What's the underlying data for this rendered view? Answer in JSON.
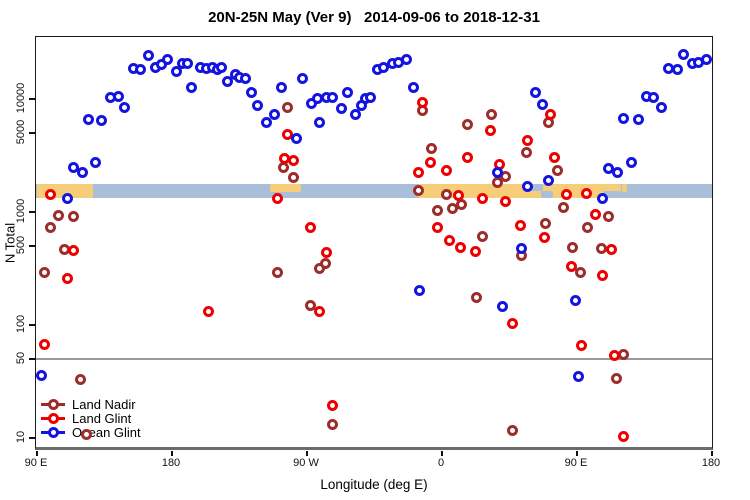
{
  "title": "20N-25N May (Ver 9)   2014-09-06 to 2018-12-31",
  "legend": {
    "items": [
      {
        "label": "Land Nadir",
        "color": "#9b2d2b"
      },
      {
        "label": "Land Glint",
        "color": "#ee0000"
      },
      {
        "label": "Ocean Glint",
        "color": "#1414e0"
      }
    ]
  },
  "chart_data": {
    "type": "scatter",
    "title": "20N-25N May (Ver 9)   2014-09-06 to 2018-12-31",
    "xlabel": "Longitude (deg E)",
    "ylabel": "N Total",
    "x_axis": {
      "note": "longitude axis wraps eastward from 90E; stored lon = degrees east of Greenwich, 90..540",
      "ticks": [
        90,
        180,
        270,
        360,
        450,
        540
      ],
      "tick_labels": [
        "90 E",
        "180",
        "90 W",
        "0",
        "90 E",
        "180"
      ],
      "range": [
        90,
        540
      ]
    },
    "y_axis": {
      "scale": "log",
      "ticks": [
        10,
        50,
        100,
        500,
        1000,
        5000,
        10000
      ],
      "tick_labels": [
        "10",
        "50",
        "100",
        "500",
        "1000",
        "5000",
        "10000"
      ],
      "range": [
        7.7,
        36000
      ]
    },
    "grid": false,
    "reference_line_n": 50,
    "map_band": {
      "n_range": [
        1300,
        1750
      ],
      "ocean_color": "#a9bed8",
      "land_color": "#f8cd7a",
      "land_segments": [
        {
          "lon_from": 90,
          "lon_to": 127,
          "frac_top": 0,
          "frac_h": 1
        },
        {
          "lon_from": 245,
          "lon_to": 266,
          "frac_top": 0,
          "frac_h": 0.6
        },
        {
          "lon_from": 344,
          "lon_to": 479,
          "frac_top": 0,
          "frac_h": 1
        },
        {
          "lon_from": 480,
          "lon_to": 483,
          "frac_top": 0,
          "frac_h": 0.55
        }
      ],
      "ocean_patches": [
        {
          "lon_from": 417,
          "lon_to": 427,
          "frac_top": 0,
          "frac_h": 0.5
        },
        {
          "lon_from": 426,
          "lon_to": 434,
          "frac_top": 0.5,
          "frac_h": 0.5
        },
        {
          "lon_from": 467,
          "lon_to": 479,
          "frac_top": 0.5,
          "frac_h": 0.5
        }
      ]
    },
    "series": [
      {
        "name": "Land Nadir",
        "color": "#9b2d2b",
        "points": [
          [
            104,
            920
          ],
          [
            114,
            900
          ],
          [
            99,
            720
          ],
          [
            108,
            460
          ],
          [
            95,
            283
          ],
          [
            119,
            32
          ],
          [
            123,
            10.6
          ],
          [
            257,
            8200
          ],
          [
            254,
            2450
          ],
          [
            261,
            1960
          ],
          [
            278,
            313
          ],
          [
            282,
            340
          ],
          [
            250,
            283
          ],
          [
            272,
            147
          ],
          [
            287,
            13
          ],
          [
            347,
            7800
          ],
          [
            353,
            3600
          ],
          [
            344,
            1530
          ],
          [
            363,
            1390
          ],
          [
            357,
            1020
          ],
          [
            367,
            1060
          ],
          [
            373,
            1150
          ],
          [
            377,
            5800
          ],
          [
            387,
            590
          ],
          [
            393,
            7100
          ],
          [
            383,
            170
          ],
          [
            397,
            1770
          ],
          [
            402,
            2000
          ],
          [
            407,
            11.5
          ],
          [
            413,
            400
          ],
          [
            416,
            3300
          ],
          [
            429,
            780
          ],
          [
            431,
            6100
          ],
          [
            437,
            2260
          ],
          [
            441,
            1080
          ],
          [
            447,
            480
          ],
          [
            452,
            283
          ],
          [
            457,
            720
          ],
          [
            466,
            470
          ],
          [
            471,
            890
          ],
          [
            476,
            33
          ],
          [
            481,
            54
          ]
        ]
      },
      {
        "name": "Land Glint",
        "color": "#ee0000",
        "points": [
          [
            99,
            1390
          ],
          [
            114,
            450
          ],
          [
            110,
            255
          ],
          [
            95,
            66
          ],
          [
            204,
            130
          ],
          [
            257,
            4800
          ],
          [
            255,
            2900
          ],
          [
            261,
            2770
          ],
          [
            250,
            1280
          ],
          [
            272,
            710
          ],
          [
            283,
            430
          ],
          [
            278,
            128
          ],
          [
            287,
            19
          ],
          [
            347,
            9200
          ],
          [
            352,
            2700
          ],
          [
            344,
            2170
          ],
          [
            363,
            2300
          ],
          [
            357,
            710
          ],
          [
            365,
            550
          ],
          [
            372,
            480
          ],
          [
            371,
            1360
          ],
          [
            377,
            3000
          ],
          [
            382,
            440
          ],
          [
            387,
            1280
          ],
          [
            392,
            5200
          ],
          [
            398,
            2600
          ],
          [
            402,
            1220
          ],
          [
            407,
            102
          ],
          [
            412,
            740
          ],
          [
            417,
            4200
          ],
          [
            428,
            580
          ],
          [
            432,
            7200
          ],
          [
            435,
            2950
          ],
          [
            443,
            1410
          ],
          [
            446,
            325
          ],
          [
            453,
            64
          ],
          [
            456,
            1440
          ],
          [
            462,
            940
          ],
          [
            467,
            266
          ],
          [
            473,
            460
          ],
          [
            475,
            53
          ],
          [
            481,
            10.2
          ]
        ]
      },
      {
        "name": "Ocean Glint",
        "color": "#1414e0",
        "points": [
          [
            93,
            35
          ],
          [
            110,
            1280
          ],
          [
            114,
            2450
          ],
          [
            120,
            2170
          ],
          [
            129,
            2660
          ],
          [
            124,
            6400
          ],
          [
            133,
            6300
          ],
          [
            139,
            10200
          ],
          [
            144,
            10400
          ],
          [
            148,
            8300
          ],
          [
            154,
            18400
          ],
          [
            159,
            17700
          ],
          [
            164,
            24000
          ],
          [
            169,
            18800
          ],
          [
            173,
            19600
          ],
          [
            177,
            21700
          ],
          [
            183,
            17000
          ],
          [
            187,
            20400
          ],
          [
            190,
            20000
          ],
          [
            193,
            12300
          ],
          [
            199,
            18800
          ],
          [
            203,
            18400
          ],
          [
            207,
            18800
          ],
          [
            210,
            17700
          ],
          [
            213,
            18800
          ],
          [
            217,
            13900
          ],
          [
            222,
            16000
          ],
          [
            225,
            15300
          ],
          [
            229,
            15000
          ],
          [
            233,
            11300
          ],
          [
            237,
            8500
          ],
          [
            243,
            6100
          ],
          [
            248,
            7200
          ],
          [
            253,
            12500
          ],
          [
            263,
            4400
          ],
          [
            267,
            15000
          ],
          [
            273,
            8900
          ],
          [
            277,
            10000
          ],
          [
            278,
            6100
          ],
          [
            283,
            10200
          ],
          [
            287,
            10200
          ],
          [
            293,
            8000
          ],
          [
            297,
            11100
          ],
          [
            302,
            7100
          ],
          [
            306,
            8500
          ],
          [
            309,
            10000
          ],
          [
            312,
            10200
          ],
          [
            317,
            17700
          ],
          [
            321,
            18800
          ],
          [
            327,
            20000
          ],
          [
            331,
            20800
          ],
          [
            336,
            21700
          ],
          [
            341,
            12500
          ],
          [
            345,
            196
          ],
          [
            397,
            2210
          ],
          [
            400,
            144
          ],
          [
            413,
            470
          ],
          [
            417,
            1650
          ],
          [
            422,
            11300
          ],
          [
            427,
            8700
          ],
          [
            431,
            1880
          ],
          [
            449,
            163
          ],
          [
            451,
            34
          ],
          [
            467,
            1280
          ],
          [
            471,
            2400
          ],
          [
            477,
            2210
          ],
          [
            481,
            6650
          ],
          [
            486,
            2700
          ],
          [
            491,
            6400
          ],
          [
            496,
            10400
          ],
          [
            501,
            10200
          ],
          [
            506,
            8300
          ],
          [
            511,
            18400
          ],
          [
            517,
            17700
          ],
          [
            521,
            24500
          ],
          [
            527,
            20400
          ],
          [
            531,
            20800
          ],
          [
            536,
            21700
          ]
        ]
      }
    ]
  }
}
